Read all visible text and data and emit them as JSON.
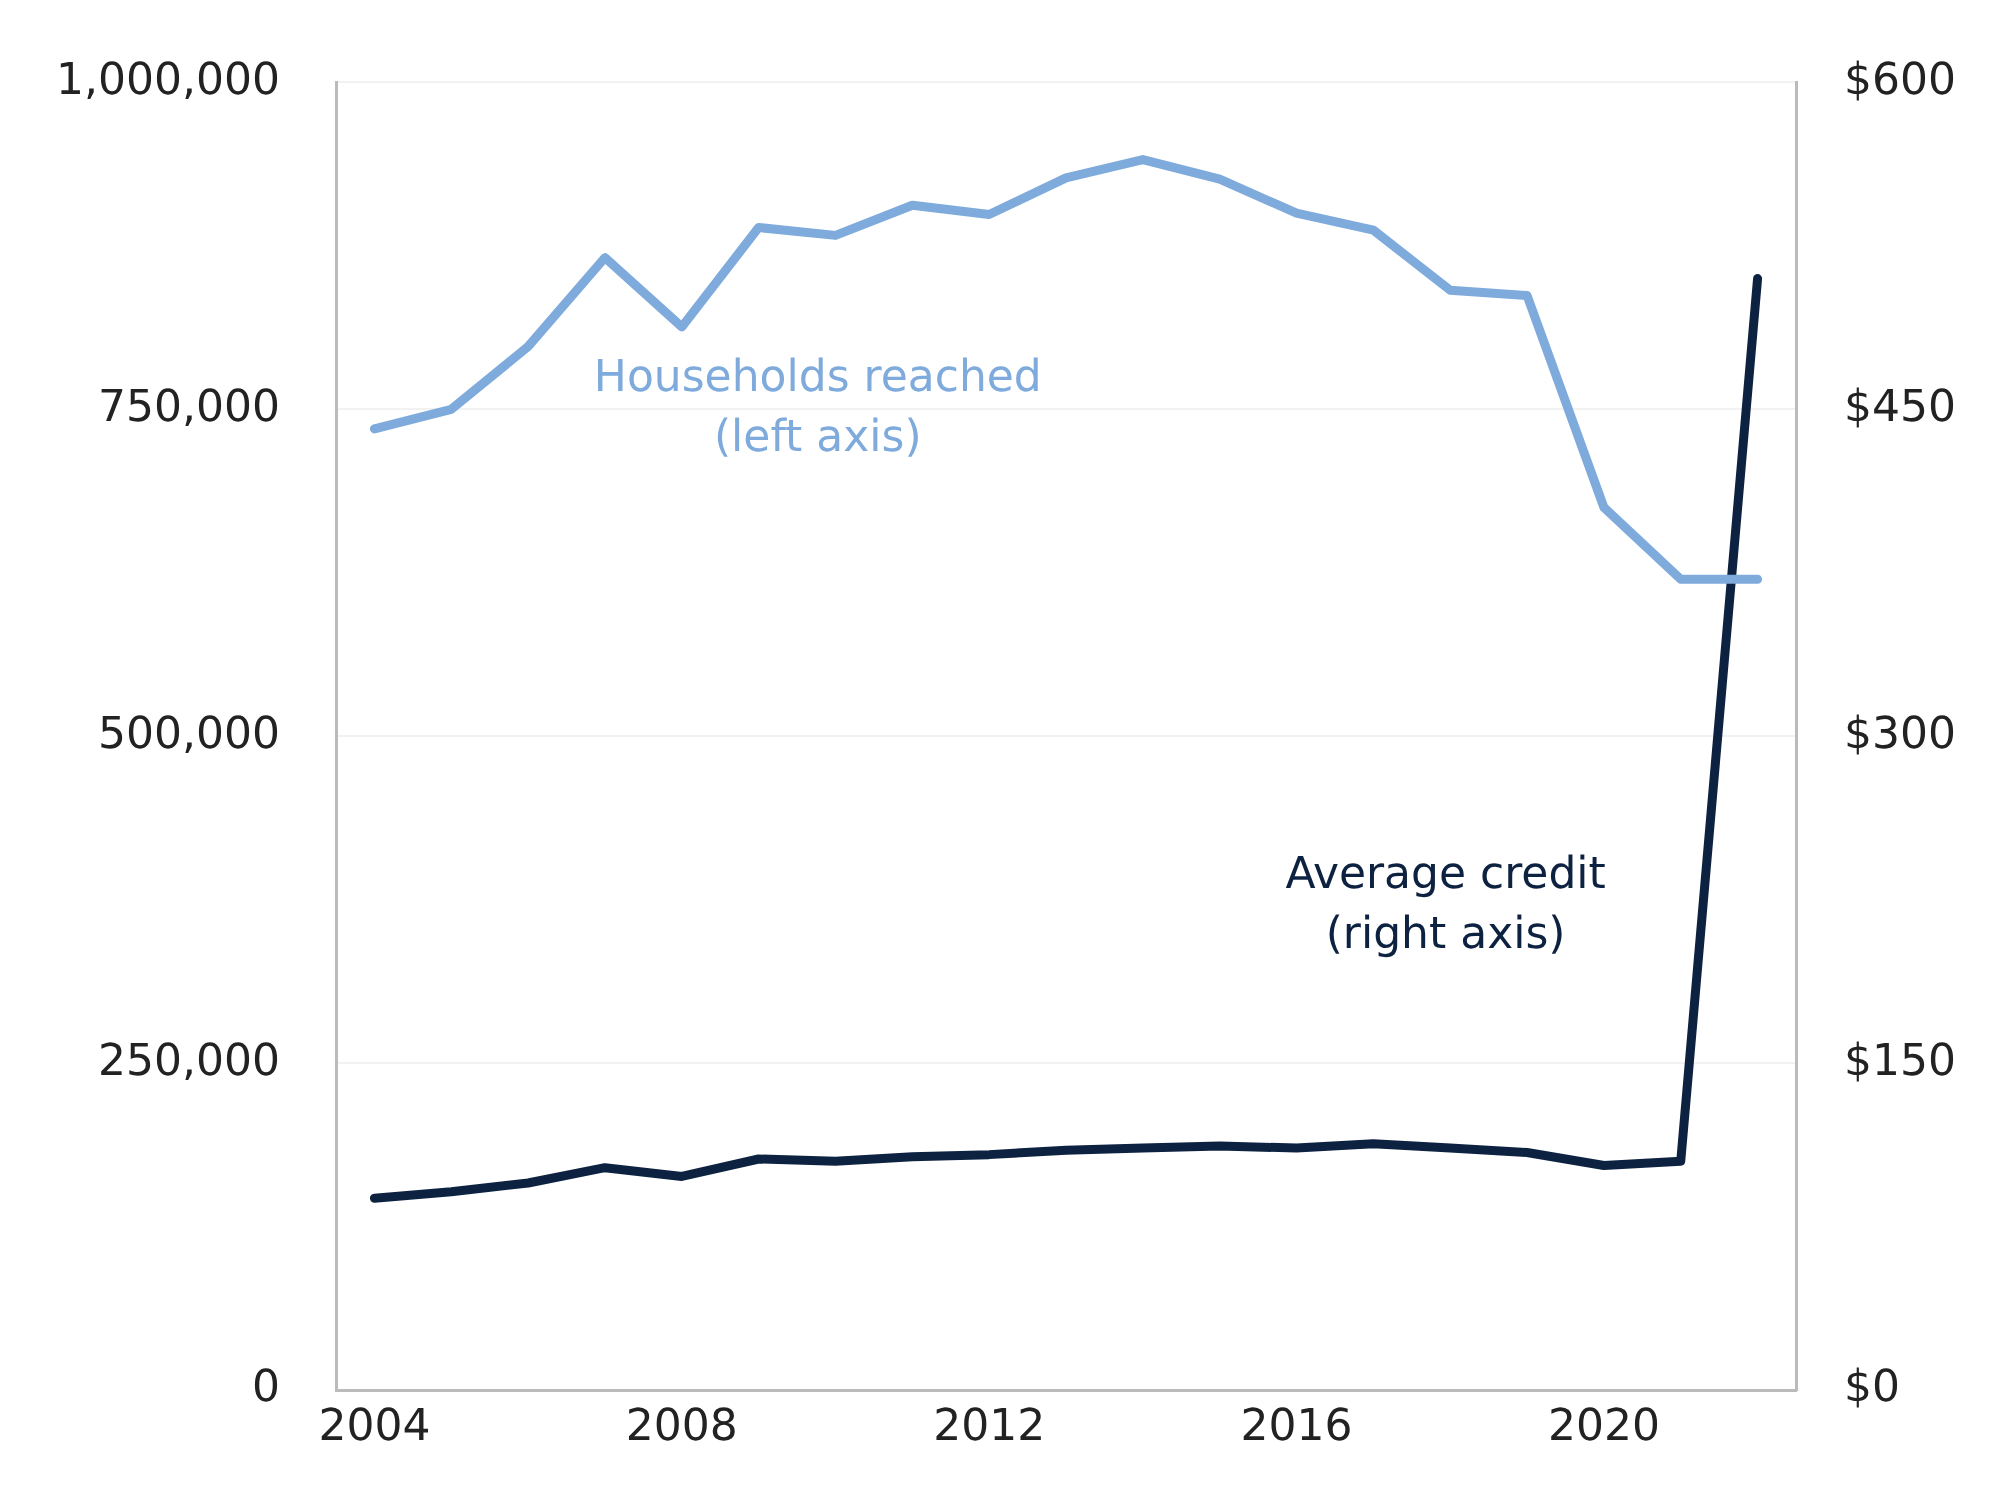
{
  "chart_data": {
    "type": "line",
    "x": [
      2004,
      2005,
      2006,
      2007,
      2008,
      2009,
      2010,
      2011,
      2012,
      2013,
      2014,
      2015,
      2016,
      2017,
      2018,
      2019,
      2020,
      2021,
      2022
    ],
    "series": [
      {
        "name": "Households reached\n(left axis)",
        "color": "#7eaadc",
        "values": [
          735000,
          750000,
          798000,
          866000,
          813000,
          889000,
          883000,
          906000,
          899000,
          927000,
          941000,
          926000,
          900000,
          887000,
          841000,
          837000,
          675000,
          620000,
          620000
        ]
      },
      {
        "name": "Average credit\n(right axis)",
        "color": "#0d2240",
        "axis": "y2",
        "values": [
          88,
          91,
          95,
          102,
          98,
          106,
          105,
          107,
          108,
          110,
          111,
          112,
          111,
          113,
          111,
          109,
          103,
          105,
          510
        ]
      }
    ],
    "xlim": [
      2003.5,
      2022.5
    ],
    "xticks": [
      2004,
      2008,
      2012,
      2016,
      2020
    ],
    "ylim": [
      0,
      1000000
    ],
    "yticks": [
      {
        "value": 0,
        "label": "0"
      },
      {
        "value": 250000,
        "label": "250,000"
      },
      {
        "value": 500000,
        "label": "500,000"
      },
      {
        "value": 750000,
        "label": "750,000"
      },
      {
        "value": 1000000,
        "label": "1,000,000"
      }
    ],
    "y2lim": [
      0,
      600
    ],
    "y2ticks": [
      {
        "value": 0,
        "label": "$0"
      },
      {
        "value": 150,
        "label": "$150"
      },
      {
        "value": 300,
        "label": "$300"
      },
      {
        "value": 450,
        "label": "$450"
      },
      {
        "value": 600,
        "label": "$600"
      }
    ],
    "grid": "y",
    "legend": false,
    "marker": "none",
    "line_style": "solid"
  }
}
